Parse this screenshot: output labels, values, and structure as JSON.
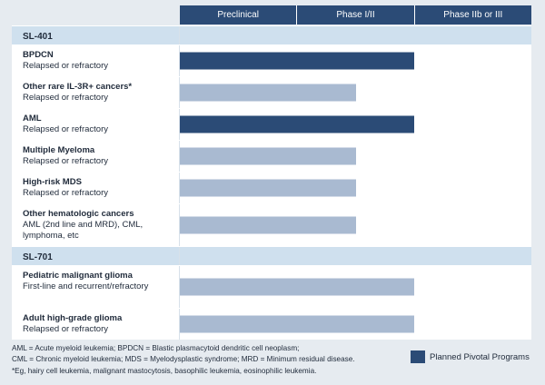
{
  "chart_data": {
    "type": "bar",
    "phases": [
      "Preclinical",
      "Phase I/II",
      "Phase IIb or III"
    ],
    "groups": [
      {
        "name": "SL-401",
        "rows": [
          {
            "name": "BPDCN",
            "sub": "Relapsed or refractory",
            "progress": 2.0,
            "pivotal": true
          },
          {
            "name": "Other rare IL-3R+ cancers*",
            "sub": "Relapsed or refractory",
            "progress": 1.5,
            "pivotal": false
          },
          {
            "name": "AML",
            "sub": "Relapsed or refractory",
            "progress": 2.0,
            "pivotal": true
          },
          {
            "name": "Multiple Myeloma",
            "sub": "Relapsed or refractory",
            "progress": 1.5,
            "pivotal": false
          },
          {
            "name": "High-risk MDS",
            "sub": "Relapsed or refractory",
            "progress": 1.5,
            "pivotal": false
          },
          {
            "name": "Other hematologic cancers",
            "sub": "AML (2nd line and MRD), CML, lymphoma, etc",
            "progress": 1.5,
            "pivotal": false
          }
        ]
      },
      {
        "name": "SL-701",
        "rows": [
          {
            "name": "Pediatric malignant glioma",
            "sub": "First-line and recurrent/refractory",
            "progress": 2.0,
            "pivotal": false
          },
          {
            "name": "Adult high-grade glioma",
            "sub": "Relapsed or refractory",
            "progress": 2.0,
            "pivotal": false
          }
        ]
      }
    ],
    "legend": "Planned Pivotal Programs",
    "colors": {
      "pivotal": "#2b4b76",
      "other": "#a9bad1",
      "section": "#cfe0ee"
    }
  },
  "footnotes": [
    "AML = Acute myeloid leukemia; BPDCN = Blastic plasmacytoid dendritic cell neoplasm;",
    "CML = Chronic myeloid leukemia; MDS = Myelodysplastic syndrome; MRD = Minimum residual disease.",
    "*Eg, hairy cell leukemia, malignant mastocytosis, basophilic leukemia, eosinophilic leukemia."
  ]
}
